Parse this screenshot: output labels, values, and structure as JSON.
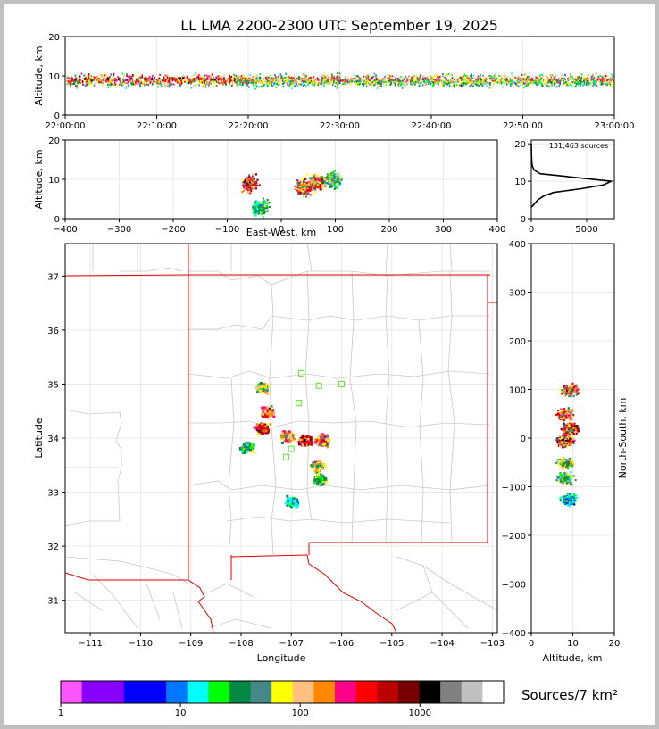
{
  "title": "LL LMA 2200-2300 UTC September 19, 2025",
  "sources_label": "131,463 sources",
  "colorbar_label": "Sources/7 km²",
  "panels": {
    "time_height": {
      "ylabel": "Altitude, km",
      "ylim": [
        0,
        20
      ],
      "yticks": [
        "0",
        "10",
        "20"
      ],
      "xticks": [
        "22:00:00",
        "22:10:00",
        "22:20:00",
        "22:30:00",
        "22:40:00",
        "22:50:00",
        "23:00:00"
      ]
    },
    "ew_height": {
      "xlabel": "East-West, km",
      "ylabel": "Altitude, km",
      "xlim": [
        -400,
        400
      ],
      "ylim": [
        0,
        20
      ],
      "xticks": [
        "−400",
        "−300",
        "−200",
        "−100",
        "0",
        "100",
        "200",
        "300",
        "400"
      ],
      "yticks": [
        "0",
        "10",
        "20"
      ]
    },
    "histogram": {
      "xlim": [
        0,
        7500
      ],
      "ylim": [
        0,
        21
      ],
      "xticks": [
        "0",
        "5000"
      ],
      "yticks": [
        "0",
        "10",
        "20"
      ]
    },
    "plan": {
      "xlabel": "Longitude",
      "ylabel": "Latitude",
      "xlim": [
        -111.5,
        -102.9
      ],
      "ylim": [
        30.4,
        37.6
      ],
      "xticks": [
        "−111",
        "−110",
        "−109",
        "−108",
        "−107",
        "−106",
        "−105",
        "−104",
        "−103"
      ],
      "yticks": [
        "31",
        "32",
        "33",
        "34",
        "35",
        "36",
        "37"
      ]
    },
    "ns_height": {
      "xlabel": "Altitude, km",
      "ylabel": "North-South, km",
      "xlim": [
        0,
        20
      ],
      "ylim": [
        -400,
        400
      ],
      "xticks": [
        "0",
        "10",
        "20"
      ],
      "yticks": [
        "−400",
        "−300",
        "−200",
        "−100",
        "0",
        "100",
        "200",
        "300",
        "400"
      ]
    }
  },
  "chart_data": {
    "type": "heatmap",
    "histogram_altitude_counts": {
      "altitude_km": [
        3,
        4,
        5,
        6,
        7,
        8,
        9,
        10,
        11,
        12,
        13,
        14,
        15,
        16,
        17,
        18,
        19,
        20
      ],
      "count": [
        0,
        300,
        600,
        1100,
        2000,
        4500,
        6500,
        7200,
        4000,
        800,
        250,
        100,
        50,
        30,
        20,
        10,
        5,
        0
      ]
    },
    "stations": [
      {
        "lon": -106.8,
        "lat": 35.2
      },
      {
        "lon": -106.45,
        "lat": 34.97
      },
      {
        "lon": -106.0,
        "lat": 35.0
      },
      {
        "lon": -106.85,
        "lat": 34.65
      },
      {
        "lon": -107.0,
        "lat": 33.8
      },
      {
        "lon": -107.1,
        "lat": 33.65
      }
    ],
    "plan_clusters": [
      {
        "lon": -107.6,
        "lat": 34.95,
        "intensity": 0.7
      },
      {
        "lon": -107.5,
        "lat": 34.5,
        "intensity": 0.9
      },
      {
        "lon": -107.6,
        "lat": 34.2,
        "intensity": 1.0
      },
      {
        "lon": -107.9,
        "lat": 33.85,
        "intensity": 0.6
      },
      {
        "lon": -107.1,
        "lat": 34.05,
        "intensity": 0.8
      },
      {
        "lon": -106.75,
        "lat": 33.97,
        "intensity": 1.0
      },
      {
        "lon": -106.4,
        "lat": 33.98,
        "intensity": 0.9
      },
      {
        "lon": -106.5,
        "lat": 33.5,
        "intensity": 0.7
      },
      {
        "lon": -106.45,
        "lat": 33.25,
        "intensity": 0.6
      },
      {
        "lon": -107.0,
        "lat": 32.85,
        "intensity": 0.4
      }
    ],
    "ew_clusters": [
      {
        "ew_km": -60,
        "alt_km": 9,
        "intensity": 1.0
      },
      {
        "ew_km": -40,
        "alt_km": 3,
        "intensity": 0.5
      },
      {
        "ew_km": 40,
        "alt_km": 8,
        "intensity": 0.9
      },
      {
        "ew_km": 65,
        "alt_km": 9.5,
        "intensity": 0.9
      },
      {
        "ew_km": 95,
        "alt_km": 10,
        "intensity": 0.6
      }
    ],
    "ns_clusters": [
      {
        "alt_km": 9,
        "ns_km": 100,
        "intensity": 0.9
      },
      {
        "alt_km": 8,
        "ns_km": 50,
        "intensity": 0.9
      },
      {
        "alt_km": 9,
        "ns_km": 20,
        "intensity": 1.0
      },
      {
        "alt_km": 8,
        "ns_km": -5,
        "intensity": 1.0
      },
      {
        "alt_km": 8,
        "ns_km": -50,
        "intensity": 0.7
      },
      {
        "alt_km": 8,
        "ns_km": -80,
        "intensity": 0.6
      },
      {
        "alt_km": 9,
        "ns_km": -125,
        "intensity": 0.4
      }
    ],
    "colorbar": {
      "ticks": [
        "1",
        "10",
        "100",
        "1000"
      ],
      "colors": [
        "#ff55ff",
        "#8800ff",
        "#8800ff",
        "#0000ff",
        "#0000ff",
        "#0077ff",
        "#00ffff",
        "#00ff00",
        "#008844",
        "#448888",
        "#ffff00",
        "#ffc080",
        "#ff8800",
        "#ff0088",
        "#ff0000",
        "#bb0000",
        "#770000",
        "#000000",
        "#808080",
        "#c0c0c0",
        "#ffffff"
      ]
    }
  }
}
